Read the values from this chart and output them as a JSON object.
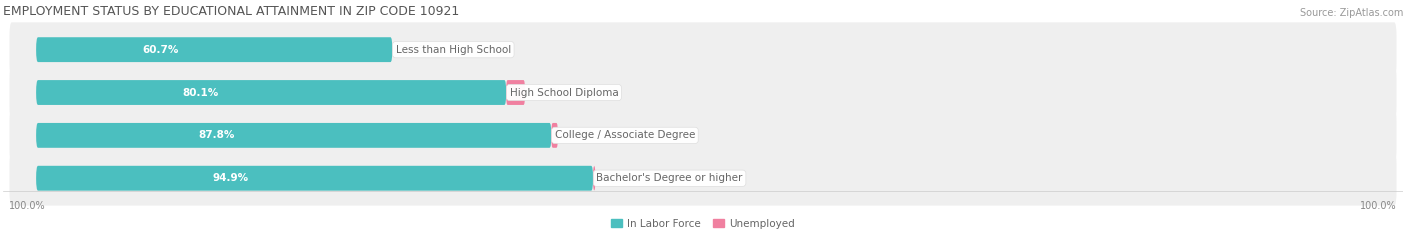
{
  "title": "EMPLOYMENT STATUS BY EDUCATIONAL ATTAINMENT IN ZIP CODE 10921",
  "source": "Source: ZipAtlas.com",
  "categories": [
    "Less than High School",
    "High School Diploma",
    "College / Associate Degree",
    "Bachelor's Degree or higher"
  ],
  "labor_force": [
    60.7,
    80.1,
    87.8,
    94.9
  ],
  "unemployed": [
    0.0,
    3.2,
    1.1,
    0.4
  ],
  "labor_force_color": "#4bbfbf",
  "unemployed_color": "#f080a0",
  "row_bg_color": "#efefef",
  "title_fontsize": 9,
  "label_fontsize": 7.5,
  "source_fontsize": 7,
  "tick_fontsize": 7,
  "legend_fontsize": 7.5,
  "background_color": "#ffffff",
  "x_left_label": "100.0%",
  "x_right_label": "100.0%"
}
